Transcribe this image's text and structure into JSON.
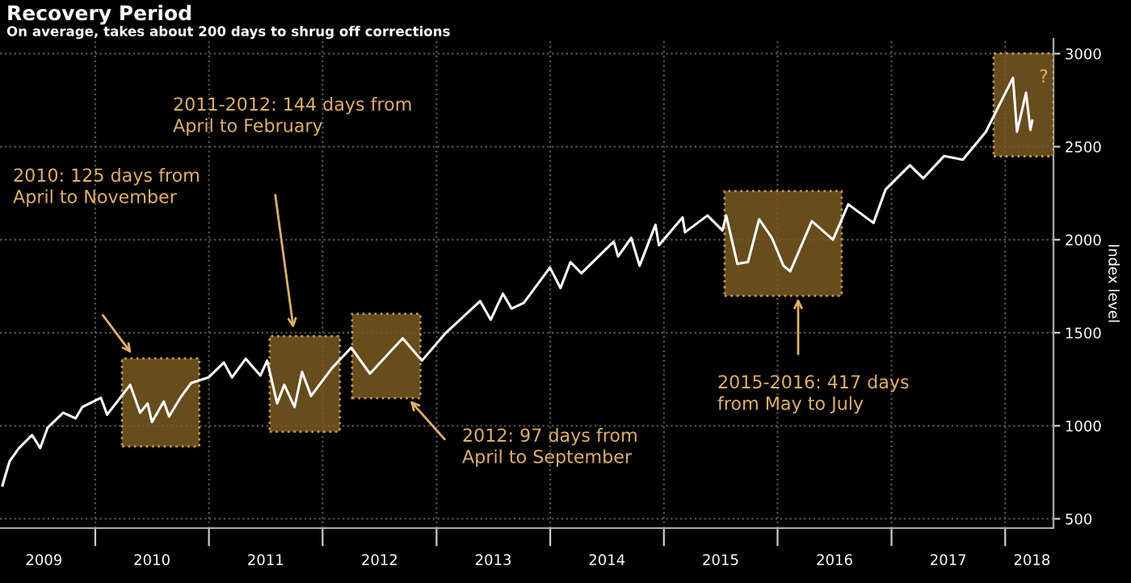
{
  "chart_data": {
    "type": "line",
    "title": "Recovery Period",
    "subtitle": "On average, takes about 200 days to shrug off corrections",
    "ylabel": "Index level",
    "x": [
      "2009-03-09",
      "2009-04-01",
      "2009-05-01",
      "2009-06-12",
      "2009-07-08",
      "2009-08-01",
      "2009-09-20",
      "2009-10-30",
      "2009-11-20",
      "2010-01-19",
      "2010-02-08",
      "2010-04-23",
      "2010-05-25",
      "2010-06-18",
      "2010-07-02",
      "2010-08-09",
      "2010-08-26",
      "2010-10-01",
      "2010-11-05",
      "2010-12-31",
      "2011-02-18",
      "2011-03-16",
      "2011-04-29",
      "2011-06-15",
      "2011-07-07",
      "2011-08-08",
      "2011-08-31",
      "2011-10-03",
      "2011-10-27",
      "2011-11-25",
      "2012-01-31",
      "2012-04-02",
      "2012-06-01",
      "2012-09-14",
      "2012-11-15",
      "2013-01-31",
      "2013-05-21",
      "2013-06-24",
      "2013-08-02",
      "2013-08-30",
      "2013-10-08",
      "2013-12-31",
      "2014-02-03",
      "2014-03-07",
      "2014-04-11",
      "2014-07-24",
      "2014-08-07",
      "2014-09-18",
      "2014-10-15",
      "2014-12-05",
      "2014-12-16",
      "2015-03-02",
      "2015-03-10",
      "2015-05-21",
      "2015-07-08",
      "2015-07-20",
      "2015-08-25",
      "2015-09-28",
      "2015-11-03",
      "2015-12-14",
      "2016-01-20",
      "2016-02-11",
      "2016-04-20",
      "2016-06-27",
      "2016-08-15",
      "2016-11-04",
      "2016-12-13",
      "2017-03-01",
      "2017-04-13",
      "2017-06-19",
      "2017-08-18",
      "2017-10-31",
      "2018-01-26",
      "2018-02-08",
      "2018-03-09",
      "2018-03-23",
      "2018-03-29"
    ],
    "series": [
      {
        "color": "#ffffff",
        "values": [
          680,
          810,
          880,
          950,
          880,
          990,
          1070,
          1040,
          1100,
          1150,
          1060,
          1220,
          1070,
          1120,
          1020,
          1130,
          1050,
          1150,
          1230,
          1260,
          1340,
          1260,
          1360,
          1270,
          1350,
          1120,
          1220,
          1100,
          1290,
          1160,
          1310,
          1420,
          1280,
          1470,
          1350,
          1500,
          1670,
          1570,
          1710,
          1630,
          1660,
          1850,
          1740,
          1880,
          1820,
          1990,
          1910,
          2010,
          1860,
          2080,
          1970,
          2120,
          2040,
          2130,
          2050,
          2130,
          1870,
          1880,
          2110,
          2010,
          1860,
          1830,
          2100,
          2000,
          2190,
          2090,
          2270,
          2400,
          2330,
          2450,
          2430,
          2580,
          2870,
          2580,
          2790,
          2590,
          2640
        ]
      }
    ],
    "xlim": [
      "2009-03-01",
      "2018-06-05"
    ],
    "xticks": [
      {
        "value": "2009-07-20",
        "label": "2009"
      },
      {
        "value": "2010-01-01",
        "label": null
      },
      {
        "value": "2010-07-02",
        "label": "2010"
      },
      {
        "value": "2011-01-01",
        "label": null
      },
      {
        "value": "2011-07-02",
        "label": "2011"
      },
      {
        "value": "2012-01-01",
        "label": null
      },
      {
        "value": "2012-07-02",
        "label": "2012"
      },
      {
        "value": "2013-01-01",
        "label": null
      },
      {
        "value": "2013-07-02",
        "label": "2013"
      },
      {
        "value": "2014-01-01",
        "label": null
      },
      {
        "value": "2014-07-02",
        "label": "2014"
      },
      {
        "value": "2015-01-01",
        "label": null
      },
      {
        "value": "2015-07-02",
        "label": "2015"
      },
      {
        "value": "2016-01-01",
        "label": null
      },
      {
        "value": "2016-07-02",
        "label": "2016"
      },
      {
        "value": "2017-01-01",
        "label": null
      },
      {
        "value": "2017-07-02",
        "label": "2017"
      },
      {
        "value": "2018-01-01",
        "label": null
      },
      {
        "value": "2018-03-28",
        "label": "2018"
      }
    ],
    "ylim": [
      450,
      3080
    ],
    "yticks": [
      500,
      1000,
      1500,
      2000,
      2500,
      3000
    ],
    "bands": [
      {
        "axis": "x",
        "from": "2010-03-28",
        "to": "2010-12-01",
        "color": "#7a5a22"
      },
      {
        "axis": "x",
        "from": "2011-07-15",
        "to": "2012-02-25",
        "color": "#7a5a22"
      },
      {
        "axis": "x",
        "from": "2012-04-05",
        "to": "2012-11-10",
        "color": "#7a5a22"
      },
      {
        "axis": "x",
        "from": "2015-07-15",
        "to": "2016-07-25",
        "color": "#7a5a22"
      },
      {
        "axis": "x",
        "from": "2017-11-25",
        "to": "2018-06-05",
        "color": "#7a5a22"
      }
    ],
    "annotations": [
      "2010: 125 days from\nApril to November",
      "2011-2012: 144 days from\nApril to February",
      "2012: 97 days from\nApril to September",
      "2015-2016: 417 days\nfrom May to July",
      "?"
    ],
    "grid": true,
    "line_style": "solid",
    "marker": "none"
  }
}
